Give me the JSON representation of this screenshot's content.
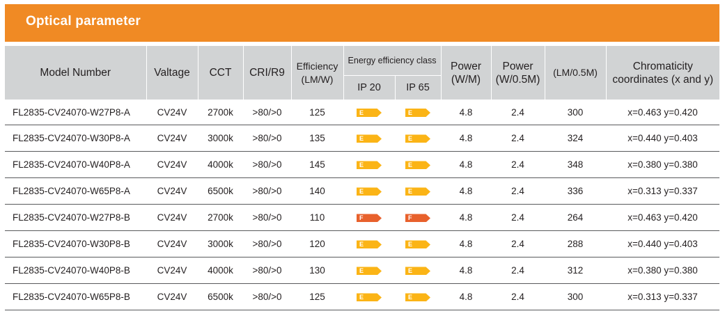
{
  "title": "Optical parameter",
  "colors": {
    "title_bar": "#f08a24",
    "header_bg": "#d1d3d4",
    "class_e": "#fbb416",
    "class_f": "#e8612c"
  },
  "headers": {
    "model": "Model Number",
    "voltage": "Valtage",
    "cct": "CCT",
    "cri": "CRI/R9",
    "efficiency_line1": "Efficiency",
    "efficiency_line2": "(LM/W)",
    "energy_class": "Energy efficiency class",
    "ip20": "IP 20",
    "ip65": "IP 65",
    "power_line1": "Power",
    "power_line2": "(W/M)",
    "power_half_line1": "Power",
    "power_half_line2": "(W/0.5M)",
    "lumen": "(LM/0.5M)",
    "chroma_line1": "Chromaticity",
    "chroma_line2": "coordinates (x and y)"
  },
  "rows": [
    {
      "model": "FL2835-CV24070-W27P8-A",
      "voltage": "CV24V",
      "cct": "2700k",
      "cri": ">80/>0",
      "efficiency": "125",
      "ip20": "E",
      "ip65": "E",
      "power": "4.8",
      "power_half": "2.4",
      "lumen": "300",
      "chroma": "x=0.463 y=0.420"
    },
    {
      "model": "FL2835-CV24070-W30P8-A",
      "voltage": "CV24V",
      "cct": "3000k",
      "cri": ">80/>0",
      "efficiency": "135",
      "ip20": "E",
      "ip65": "E",
      "power": "4.8",
      "power_half": "2.4",
      "lumen": "324",
      "chroma": "x=0.440 y=0.403"
    },
    {
      "model": "FL2835-CV24070-W40P8-A",
      "voltage": "CV24V",
      "cct": "4000k",
      "cri": ">80/>0",
      "efficiency": "145",
      "ip20": "E",
      "ip65": "E",
      "power": "4.8",
      "power_half": "2.4",
      "lumen": "348",
      "chroma": "x=0.380 y=0.380"
    },
    {
      "model": "FL2835-CV24070-W65P8-A",
      "voltage": "CV24V",
      "cct": "6500k",
      "cri": ">80/>0",
      "efficiency": "140",
      "ip20": "E",
      "ip65": "E",
      "power": "4.8",
      "power_half": "2.4",
      "lumen": "336",
      "chroma": "x=0.313 y=0.337"
    },
    {
      "model": "FL2835-CV24070-W27P8-B",
      "voltage": "CV24V",
      "cct": "2700k",
      "cri": ">80/>0",
      "efficiency": "110",
      "ip20": "F",
      "ip65": "F",
      "power": "4.8",
      "power_half": "2.4",
      "lumen": "264",
      "chroma": "x=0.463 y=0.420"
    },
    {
      "model": "FL2835-CV24070-W30P8-B",
      "voltage": "CV24V",
      "cct": "3000k",
      "cri": ">80/>0",
      "efficiency": "120",
      "ip20": "E",
      "ip65": "E",
      "power": "4.8",
      "power_half": "2.4",
      "lumen": "288",
      "chroma": "x=0.440 y=0.403"
    },
    {
      "model": "FL2835-CV24070-W40P8-B",
      "voltage": "CV24V",
      "cct": "4000k",
      "cri": ">80/>0",
      "efficiency": "130",
      "ip20": "E",
      "ip65": "E",
      "power": "4.8",
      "power_half": "2.4",
      "lumen": "312",
      "chroma": "x=0.380 y=0.380"
    },
    {
      "model": "FL2835-CV24070-W65P8-B",
      "voltage": "CV24V",
      "cct": "6500k",
      "cri": ">80/>0",
      "efficiency": "125",
      "ip20": "E",
      "ip65": "E",
      "power": "4.8",
      "power_half": "2.4",
      "lumen": "300",
      "chroma": "x=0.313 y=0.337"
    }
  ]
}
